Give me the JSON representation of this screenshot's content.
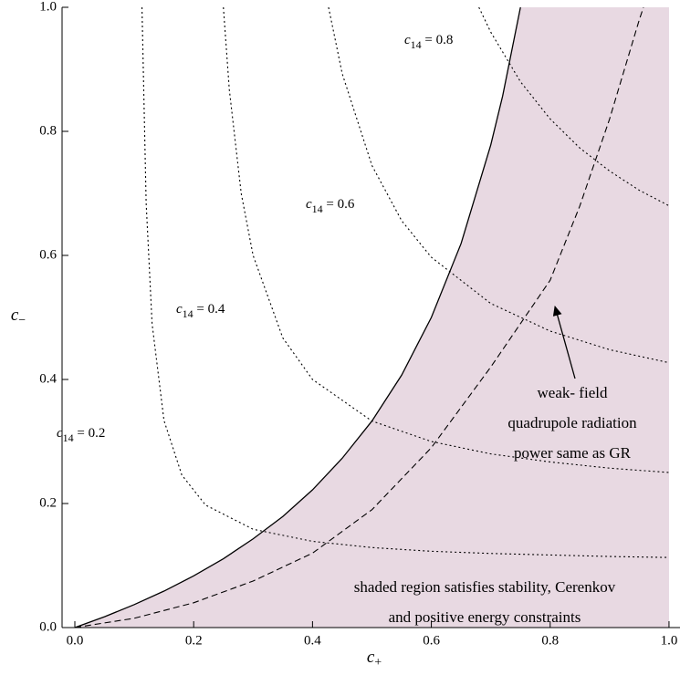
{
  "chart_data": {
    "type": "line",
    "xlabel": {
      "symbol": "c",
      "sub": "+"
    },
    "ylabel": {
      "symbol": "c",
      "sub": "−"
    },
    "xlim": [
      -0.0215,
      1.0185
    ],
    "ylim": [
      0,
      1
    ],
    "xticks": [
      {
        "value": 0,
        "label": "0.0"
      },
      {
        "value": 0.2,
        "label": "0.2"
      },
      {
        "value": 0.4,
        "label": "0.4"
      },
      {
        "value": 0.6,
        "label": "0.6"
      },
      {
        "value": 0.8,
        "label": "0.8"
      },
      {
        "value": 1,
        "label": "1.0"
      }
    ],
    "yticks": [
      {
        "value": 0,
        "label": "0.0"
      },
      {
        "value": 0.2,
        "label": "0.2"
      },
      {
        "value": 0.4,
        "label": "0.4"
      },
      {
        "value": 0.6,
        "label": "0.6"
      },
      {
        "value": 0.8,
        "label": "0.8"
      },
      {
        "value": 1,
        "label": "1.0"
      }
    ],
    "series": [
      {
        "color": "#000000",
        "dash": "solid",
        "fill_color": "#e8d9e2",
        "x": [
          0,
          0.05,
          0.1,
          0.15,
          0.2,
          0.25,
          0.3,
          0.35,
          0.4,
          0.45,
          0.5,
          0.55,
          0.6,
          0.65,
          0.7,
          0.72,
          0.75
        ],
        "values": [
          0,
          0.0175,
          0.037,
          0.0588,
          0.0833,
          0.111,
          0.143,
          0.179,
          0.222,
          0.273,
          0.333,
          0.407,
          0.5,
          0.619,
          0.778,
          0.857,
          1.0
        ]
      },
      {
        "color": "#000000",
        "dash": "dashed",
        "x": [
          0,
          0.1,
          0.2,
          0.3,
          0.4,
          0.5,
          0.6,
          0.7,
          0.8,
          0.85,
          0.9,
          0.95,
          0.957
        ],
        "values": [
          0,
          0.015,
          0.04,
          0.075,
          0.12,
          0.19,
          0.29,
          0.42,
          0.56,
          0.68,
          0.82,
          0.98,
          1.0
        ]
      },
      {
        "color": "#000000",
        "dash": "dotted",
        "label": {
          "symbol": "c",
          "sub": "14",
          "rest": " = 0.2"
        },
        "x": [
          0.113,
          0.12,
          0.13,
          0.15,
          0.18,
          0.22,
          0.3,
          0.4,
          0.5,
          0.6,
          0.7,
          0.8,
          0.9,
          1.0
        ],
        "values": [
          1.0,
          0.685,
          0.49,
          0.334,
          0.246,
          0.1975,
          0.1585,
          0.139,
          0.129,
          0.123,
          0.1195,
          0.117,
          0.1146,
          0.113
        ]
      },
      {
        "color": "#000000",
        "dash": "dotted",
        "label": {
          "symbol": "c",
          "sub": "14",
          "rest": " = 0.4"
        },
        "x": [
          0.25,
          0.26,
          0.28,
          0.3,
          0.35,
          0.4,
          0.5,
          0.6,
          0.7,
          0.8,
          0.9,
          1.0
        ],
        "values": [
          1.0,
          0.867,
          0.7,
          0.6,
          0.467,
          0.4,
          0.333,
          0.3,
          0.28,
          0.267,
          0.257,
          0.25
        ]
      },
      {
        "color": "#000000",
        "dash": "dotted",
        "label": {
          "symbol": "c",
          "sub": "14",
          "rest": " = 0.6"
        },
        "x": [
          0.427,
          0.45,
          0.5,
          0.55,
          0.6,
          0.7,
          0.8,
          0.9,
          1.0
        ],
        "values": [
          1.0,
          0.893,
          0.745,
          0.656,
          0.597,
          0.5225,
          0.478,
          0.448,
          0.427
        ]
      },
      {
        "color": "#000000",
        "dash": "dotted",
        "label": {
          "symbol": "c",
          "sub": "14",
          "rest": " = 0.8"
        },
        "x": [
          0.68,
          0.7,
          0.75,
          0.8,
          0.85,
          0.9,
          0.95,
          1.0
        ],
        "values": [
          1.0,
          0.96,
          0.88,
          0.82,
          0.773,
          0.736,
          0.705,
          0.68
        ]
      }
    ],
    "annotations": [
      [
        "weak- field",
        "quadrupole radiation",
        "power same as GR"
      ],
      [
        "shaded region satisfies stability, Cerenkov",
        "and positive energy constraints"
      ]
    ]
  }
}
